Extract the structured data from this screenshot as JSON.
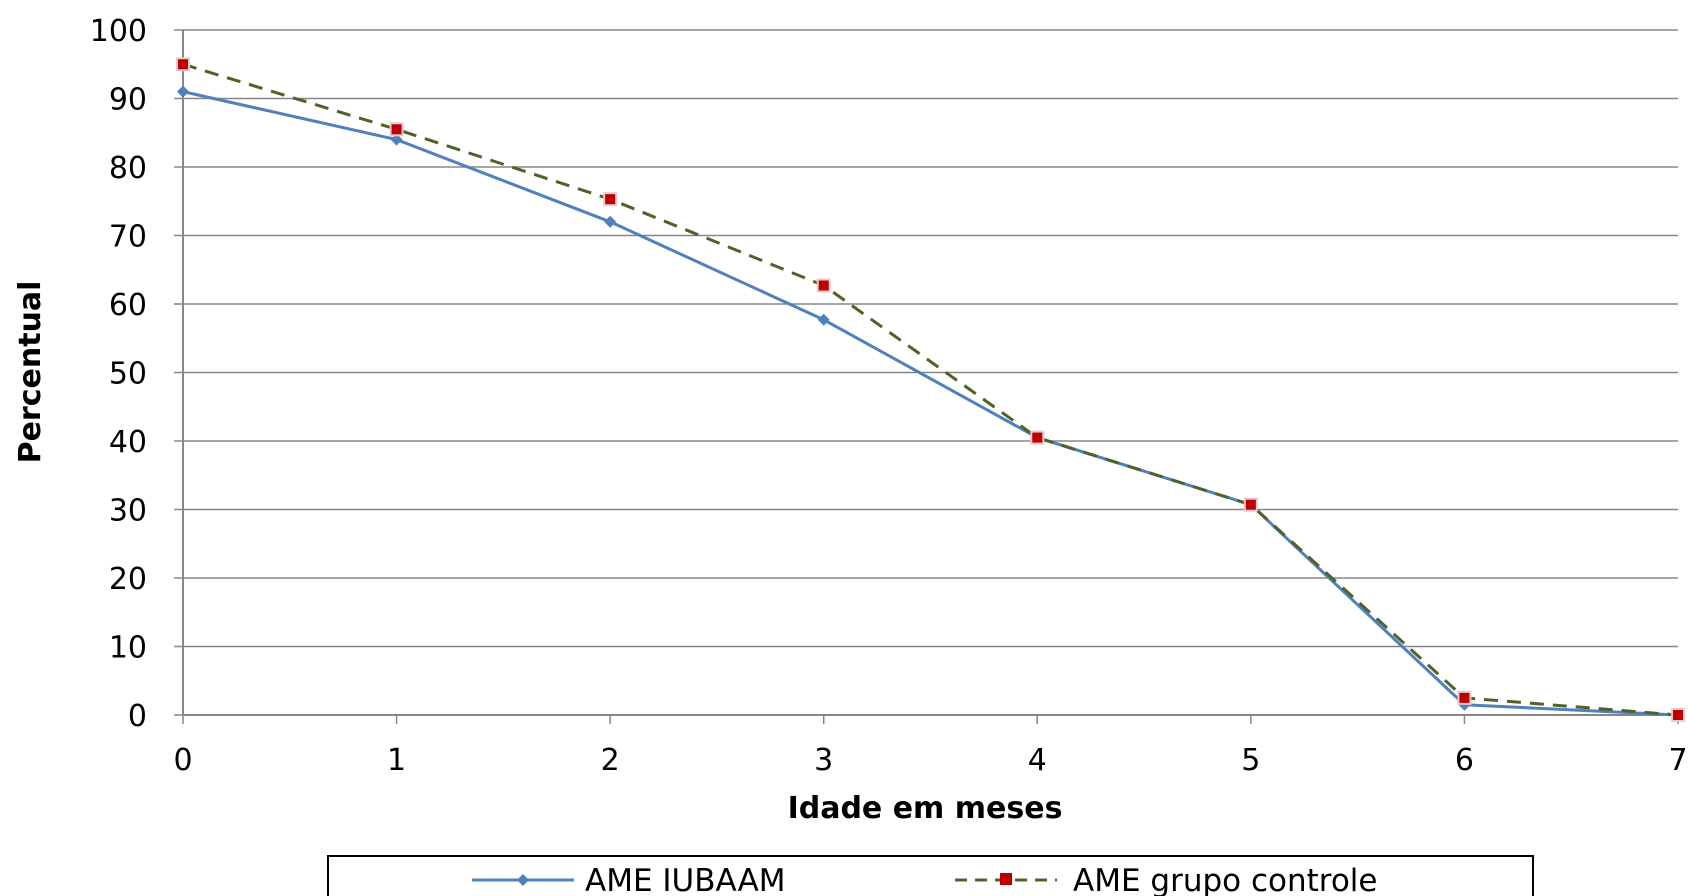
{
  "chart_data": {
    "type": "line",
    "xlabel": "Idade em meses",
    "ylabel": "Percentual",
    "xlim": [
      0,
      7
    ],
    "ylim": [
      0,
      100
    ],
    "x_ticks": [
      0,
      1,
      2,
      3,
      4,
      5,
      6,
      7
    ],
    "y_ticks": [
      0,
      10,
      20,
      30,
      40,
      50,
      60,
      70,
      80,
      90,
      100
    ],
    "grid": "horizontal",
    "legend_position": "bottom",
    "x": [
      0,
      1,
      2,
      3,
      4,
      5,
      6,
      7
    ],
    "series": [
      {
        "name": "AME IUBAAM",
        "values": [
          91,
          84,
          72,
          57.7,
          40.5,
          30.7,
          1.5,
          0
        ],
        "color": "#4f81bd",
        "style": "solid",
        "marker": "diamond"
      },
      {
        "name": "AME grupo controle",
        "values": [
          95,
          85.5,
          75.3,
          62.7,
          40.5,
          30.7,
          2.5,
          0
        ],
        "color": "#4f6228",
        "marker_color": "#c00000",
        "style": "dashed",
        "marker": "square"
      }
    ]
  }
}
